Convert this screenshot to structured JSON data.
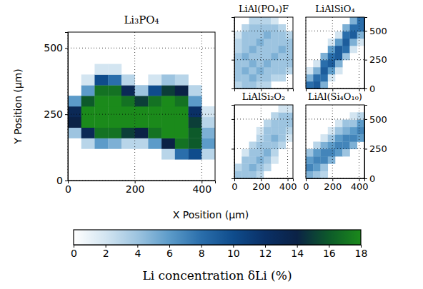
{
  "chart_data": [
    {
      "type": "heatmap",
      "title": "Li₃PO₄",
      "xlabel": "X Position (µm)",
      "ylabel": "Y Position (µm)",
      "x": [
        20,
        60,
        100,
        140,
        180,
        220,
        260,
        300,
        340,
        380,
        420
      ],
      "y": [
        20,
        60,
        100,
        140,
        180,
        220,
        260,
        300,
        340,
        380,
        420,
        460,
        500,
        540
      ],
      "values": [
        [
          null,
          null,
          null,
          null,
          null,
          null,
          null,
          null,
          null,
          null,
          null
        ],
        [
          null,
          null,
          null,
          null,
          null,
          null,
          null,
          null,
          null,
          null,
          null
        ],
        [
          null,
          null,
          null,
          null,
          null,
          null,
          null,
          3,
          8,
          10,
          3
        ],
        [
          null,
          3,
          6,
          5,
          3,
          3,
          6,
          14,
          17,
          16,
          6
        ],
        [
          4,
          13,
          17,
          17,
          15,
          14,
          17,
          18,
          18,
          16,
          5
        ],
        [
          14,
          18,
          18,
          18,
          18,
          18,
          18,
          18,
          18,
          15,
          3
        ],
        [
          13,
          18,
          18,
          18,
          18,
          18,
          18,
          18,
          18,
          12,
          2
        ],
        [
          6,
          16,
          18,
          18,
          17,
          15,
          17,
          18,
          17,
          6,
          null
        ],
        [
          null,
          6,
          17,
          17,
          13,
          4,
          10,
          15,
          14,
          3,
          null
        ],
        [
          null,
          2,
          10,
          8,
          3,
          null,
          2,
          4,
          3,
          null,
          null
        ],
        [
          null,
          null,
          2,
          2,
          null,
          null,
          null,
          null,
          null,
          null,
          null
        ],
        [
          null,
          null,
          null,
          null,
          null,
          null,
          null,
          null,
          null,
          null,
          null
        ],
        [
          null,
          null,
          null,
          null,
          null,
          null,
          null,
          null,
          null,
          null,
          null
        ],
        [
          null,
          null,
          null,
          null,
          null,
          null,
          null,
          null,
          null,
          null,
          null
        ]
      ],
      "xlim": [
        0,
        440
      ],
      "ylim": [
        0,
        560
      ],
      "xticks": [
        0,
        200,
        400
      ],
      "yticks": [
        0,
        250,
        500
      ],
      "grid": true,
      "colorbar": {
        "label": "Li concentration δLi (%)",
        "lim": [
          0,
          18
        ],
        "ticks": [
          0,
          2,
          4,
          6,
          8,
          10,
          12,
          14,
          16,
          18
        ],
        "colors": [
          "#ffffff",
          "#d3e5f1",
          "#9dc4e0",
          "#5c9bc9",
          "#2a6eab",
          "#0f4c8c",
          "#0a3066",
          "#0b2246",
          "#0d5a2a",
          "#1b8a1b"
        ]
      }
    },
    {
      "type": "heatmap",
      "title": "LiAl(PO₄)F",
      "x": [
        27.5,
        82.5,
        137.5,
        192.5,
        247.5,
        302.5,
        357.5,
        412.5
      ],
      "y": [
        31,
        93,
        155,
        217,
        279,
        341,
        403,
        465,
        527,
        589
      ],
      "values": [
        [
          3,
          4,
          4,
          3,
          3,
          null,
          null,
          null
        ],
        [
          4,
          4,
          5,
          4,
          4,
          3,
          3,
          null
        ],
        [
          4,
          5,
          4,
          5,
          4,
          4,
          4,
          3
        ],
        [
          4,
          4,
          5,
          4,
          5,
          4,
          4,
          4
        ],
        [
          4,
          5,
          4,
          4,
          4,
          5,
          4,
          4
        ],
        [
          3,
          4,
          5,
          4,
          4,
          4,
          5,
          4
        ],
        [
          3,
          4,
          4,
          5,
          4,
          4,
          4,
          4
        ],
        [
          2,
          4,
          4,
          4,
          5,
          4,
          4,
          3
        ],
        [
          null,
          3,
          4,
          4,
          4,
          4,
          3,
          null
        ],
        [
          null,
          null,
          3,
          3,
          3,
          2,
          null,
          null
        ]
      ],
      "xlim": [
        0,
        440
      ],
      "ylim": [
        0,
        620
      ],
      "xticks": [
        0,
        200,
        400
      ],
      "yticks": [
        0,
        250,
        500
      ],
      "grid": true,
      "tick_labels": false
    },
    {
      "type": "heatmap",
      "title": "LiAlSiO₄",
      "x": [
        27.5,
        82.5,
        137.5,
        192.5,
        247.5,
        302.5,
        357.5,
        412.5
      ],
      "y": [
        31,
        93,
        155,
        217,
        279,
        341,
        403,
        465,
        527,
        589
      ],
      "values": [
        [
          8,
          9,
          5,
          null,
          null,
          null,
          null,
          null
        ],
        [
          5,
          8,
          8,
          2,
          null,
          null,
          null,
          null
        ],
        [
          2,
          5,
          9,
          6,
          2,
          null,
          null,
          null
        ],
        [
          null,
          2,
          8,
          9,
          5,
          null,
          null,
          null
        ],
        [
          null,
          null,
          5,
          8,
          9,
          4,
          null,
          null
        ],
        [
          null,
          null,
          null,
          6,
          9,
          8,
          2,
          null
        ],
        [
          null,
          null,
          null,
          2,
          6,
          9,
          5,
          2
        ],
        [
          null,
          null,
          null,
          null,
          2,
          8,
          9,
          5
        ],
        [
          null,
          null,
          null,
          null,
          null,
          5,
          8,
          8
        ],
        [
          null,
          null,
          null,
          null,
          null,
          null,
          5,
          8
        ]
      ],
      "xlim": [
        0,
        440
      ],
      "ylim": [
        0,
        620
      ],
      "xticks": [
        0,
        200,
        400
      ],
      "yticks": [
        0,
        250,
        500
      ],
      "grid": true,
      "tick_labels": "y"
    },
    {
      "type": "heatmap",
      "title": "LiAlSi₂O₂",
      "x": [
        27.5,
        82.5,
        137.5,
        192.5,
        247.5,
        302.5,
        357.5,
        412.5
      ],
      "y": [
        31,
        93,
        155,
        217,
        279,
        341,
        403,
        465,
        527,
        589
      ],
      "values": [
        [
          4,
          4,
          4,
          3,
          null,
          null,
          null,
          null
        ],
        [
          3,
          4,
          5,
          4,
          3,
          null,
          null,
          null
        ],
        [
          null,
          4,
          4,
          5,
          4,
          2,
          null,
          null
        ],
        [
          null,
          2,
          4,
          4,
          5,
          3,
          null,
          null
        ],
        [
          null,
          null,
          3,
          4,
          4,
          4,
          3,
          null
        ],
        [
          null,
          null,
          null,
          3,
          4,
          5,
          4,
          2
        ],
        [
          null,
          null,
          null,
          2,
          4,
          4,
          4,
          3
        ],
        [
          null,
          null,
          null,
          null,
          3,
          4,
          4,
          4
        ],
        [
          null,
          null,
          null,
          null,
          null,
          3,
          4,
          4
        ],
        [
          null,
          null,
          null,
          null,
          null,
          null,
          2,
          2
        ]
      ],
      "xlim": [
        0,
        440
      ],
      "ylim": [
        0,
        620
      ],
      "xticks": [
        0,
        200,
        400
      ],
      "yticks": [
        0,
        250,
        500
      ],
      "grid": true,
      "tick_labels": "x"
    },
    {
      "type": "heatmap",
      "title": "LiAl(Si₄O₁₀)",
      "x": [
        27.5,
        82.5,
        137.5,
        192.5,
        247.5,
        302.5,
        357.5,
        412.5
      ],
      "y": [
        31,
        93,
        155,
        217,
        279,
        341,
        403,
        465,
        527,
        589
      ],
      "values": [
        [
          5,
          4,
          3,
          null,
          null,
          null,
          null,
          null
        ],
        [
          7,
          6,
          4,
          null,
          null,
          null,
          null,
          null
        ],
        [
          6,
          7,
          7,
          5,
          null,
          null,
          null,
          null
        ],
        [
          4,
          6,
          7,
          7,
          6,
          4,
          null,
          null
        ],
        [
          null,
          3,
          5,
          6,
          7,
          7,
          5,
          null
        ],
        [
          null,
          null,
          2,
          4,
          6,
          7,
          7,
          6
        ],
        [
          null,
          null,
          null,
          2,
          4,
          5,
          6,
          7
        ],
        [
          null,
          null,
          null,
          null,
          2,
          4,
          4,
          6
        ],
        [
          null,
          null,
          null,
          null,
          null,
          null,
          2,
          3
        ],
        [
          null,
          null,
          null,
          null,
          null,
          null,
          null,
          null
        ]
      ],
      "xlim": [
        0,
        440
      ],
      "ylim": [
        0,
        620
      ],
      "xticks": [
        0,
        200,
        400
      ],
      "yticks": [
        0,
        250,
        500
      ],
      "grid": true
    }
  ]
}
